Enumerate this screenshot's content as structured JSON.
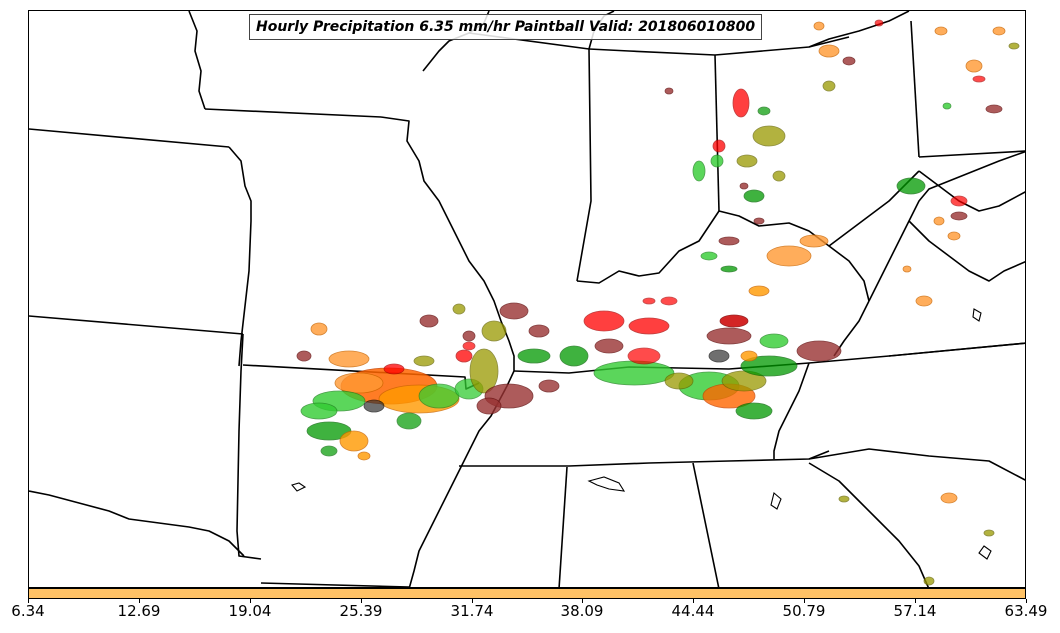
{
  "map": {
    "title": "Hourly Precipitation 6.35 mm/hr Paintball Valid: 201806010800",
    "product": "paintball",
    "boundary_color": "#000000",
    "background_color": "#ffffff",
    "member_colors": [
      "#ff0000",
      "#009900",
      "#999900",
      "#ff9900",
      "#993333",
      "#333333",
      "#33cc33",
      "#ff6600",
      "#cc0000"
    ]
  },
  "colorbar": {
    "color": "#ffc266",
    "labels": [
      "6.34",
      "12.69",
      "19.04",
      "25.39",
      "31.74",
      "38.09",
      "44.44",
      "50.79",
      "57.14",
      "63.49"
    ]
  }
}
